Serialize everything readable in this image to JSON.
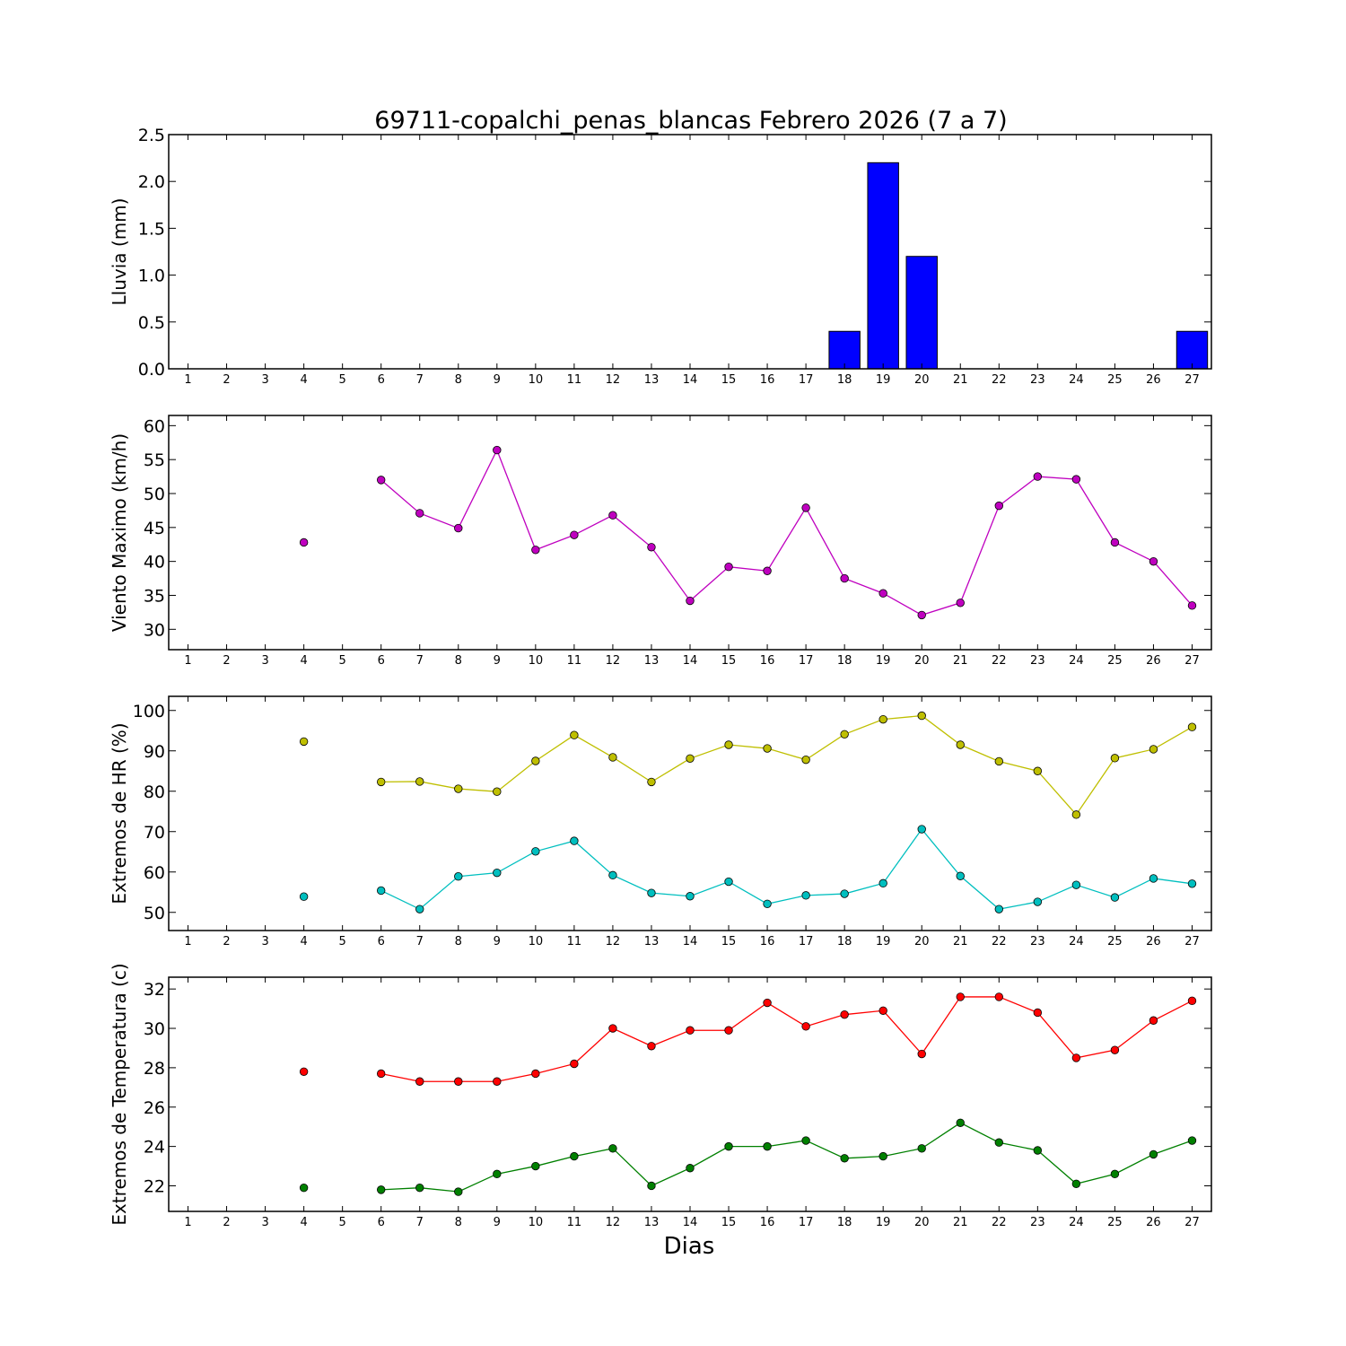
{
  "title": "69711-copalchi_penas_blancas Febrero 2026  (7 a 7)",
  "xlabel": "Dias",
  "chart_data": [
    {
      "id": "lluvia",
      "type": "bar",
      "ylabel": "Lluvia (mm)",
      "ylim": [
        0,
        2.5
      ],
      "yticks": [
        "0.0",
        "0.5",
        "1.0",
        "1.5",
        "2.0",
        "2.5"
      ],
      "x": [
        1,
        2,
        3,
        4,
        5,
        6,
        7,
        8,
        9,
        10,
        11,
        12,
        13,
        14,
        15,
        16,
        17,
        18,
        19,
        20,
        21,
        22,
        23,
        24,
        25,
        26,
        27
      ],
      "series": [
        {
          "color": "#0000ff",
          "values": [
            0,
            0,
            0,
            0,
            0,
            0,
            0,
            0,
            0,
            0,
            0,
            0,
            0,
            0,
            0,
            0,
            0,
            0.4,
            2.2,
            1.2,
            0,
            0,
            0,
            0,
            0,
            0,
            0.4
          ]
        }
      ]
    },
    {
      "id": "viento",
      "type": "line",
      "ylabel": "Viento Maximo (km/h)",
      "ylim": [
        27,
        61.5
      ],
      "yticks": [
        "30",
        "35",
        "40",
        "45",
        "50",
        "55",
        "60"
      ],
      "x": [
        1,
        2,
        3,
        4,
        5,
        6,
        7,
        8,
        9,
        10,
        11,
        12,
        13,
        14,
        15,
        16,
        17,
        18,
        19,
        20,
        21,
        22,
        23,
        24,
        25,
        26,
        27
      ],
      "series": [
        {
          "color": "#bf00bf",
          "values": [
            null,
            null,
            null,
            42.8,
            null,
            52.0,
            47.1,
            44.9,
            56.4,
            41.7,
            43.9,
            46.8,
            42.1,
            34.2,
            39.2,
            38.6,
            47.9,
            37.5,
            35.3,
            32.1,
            33.9,
            48.2,
            52.5,
            52.1,
            42.8,
            40.0,
            33.5
          ]
        }
      ]
    },
    {
      "id": "hr",
      "type": "line",
      "ylabel": "Extremos de HR (%)",
      "ylim": [
        45.5,
        103.5
      ],
      "yticks": [
        "50",
        "60",
        "70",
        "80",
        "90",
        "100"
      ],
      "x": [
        1,
        2,
        3,
        4,
        5,
        6,
        7,
        8,
        9,
        10,
        11,
        12,
        13,
        14,
        15,
        16,
        17,
        18,
        19,
        20,
        21,
        22,
        23,
        24,
        25,
        26,
        27
      ],
      "series": [
        {
          "color": "#bfbf00",
          "values": [
            null,
            null,
            null,
            92.3,
            null,
            82.3,
            82.4,
            80.6,
            79.9,
            87.5,
            93.9,
            88.4,
            82.3,
            88.1,
            91.5,
            90.6,
            87.8,
            94.1,
            97.8,
            98.7,
            91.5,
            87.4,
            85.0,
            74.2,
            88.2,
            90.4,
            95.9
          ]
        },
        {
          "color": "#00bfbf",
          "values": [
            null,
            null,
            null,
            53.9,
            null,
            55.4,
            50.8,
            58.9,
            59.8,
            65.1,
            67.7,
            59.2,
            54.8,
            54.0,
            57.6,
            52.1,
            54.2,
            54.6,
            57.2,
            70.6,
            59.0,
            50.8,
            52.6,
            56.8,
            53.7,
            58.4,
            57.1
          ]
        }
      ]
    },
    {
      "id": "temperatura",
      "type": "line",
      "ylabel": "Extremos de Temperatura (c)",
      "ylim": [
        20.7,
        32.6
      ],
      "yticks": [
        "22",
        "24",
        "26",
        "28",
        "30",
        "32"
      ],
      "x": [
        1,
        2,
        3,
        4,
        5,
        6,
        7,
        8,
        9,
        10,
        11,
        12,
        13,
        14,
        15,
        16,
        17,
        18,
        19,
        20,
        21,
        22,
        23,
        24,
        25,
        26,
        27
      ],
      "series": [
        {
          "color": "#ff0000",
          "values": [
            null,
            null,
            null,
            27.8,
            null,
            27.7,
            27.3,
            27.3,
            27.3,
            27.7,
            28.2,
            30.0,
            29.1,
            29.9,
            29.9,
            31.3,
            30.1,
            30.7,
            30.9,
            28.7,
            31.6,
            31.6,
            30.8,
            28.5,
            28.9,
            30.4,
            31.4
          ]
        },
        {
          "color": "#008000",
          "values": [
            null,
            null,
            null,
            21.9,
            null,
            21.8,
            21.9,
            21.7,
            22.6,
            23.0,
            23.5,
            23.9,
            22.0,
            22.9,
            24.0,
            24.0,
            24.3,
            23.4,
            23.5,
            23.9,
            25.2,
            24.2,
            23.8,
            22.1,
            22.6,
            23.6,
            24.3
          ]
        }
      ]
    }
  ]
}
